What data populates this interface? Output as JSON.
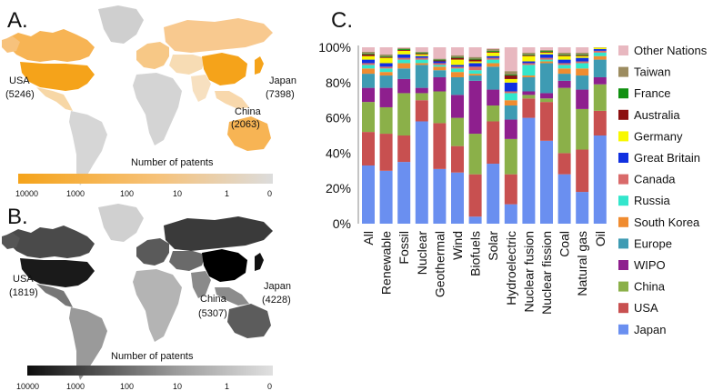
{
  "panels": {
    "a": {
      "letter": "A.",
      "colorbar_title": "Number of patents",
      "ticks": [
        "10000",
        "1000",
        "100",
        "10",
        "1",
        "0"
      ],
      "color_high": "#f5a31a",
      "color_low": "#d9d9d9",
      "countries": [
        {
          "name": "USA",
          "value": "(5246)"
        },
        {
          "name": "China",
          "value": "(2063)"
        },
        {
          "name": "Japan",
          "value": "(7398)"
        }
      ]
    },
    "b": {
      "letter": "B.",
      "colorbar_title": "Number of patents",
      "ticks": [
        "10000",
        "1000",
        "100",
        "10",
        "1",
        "0"
      ],
      "color_high": "#111111",
      "color_low": "#d9d9d9",
      "countries": [
        {
          "name": "USA",
          "value": "(1819)"
        },
        {
          "name": "China",
          "value": "(5307)"
        },
        {
          "name": "Japan",
          "value": "(4228)"
        }
      ]
    },
    "c": {
      "letter": "C."
    }
  },
  "chart_data": {
    "type": "bar",
    "stacked": true,
    "categories": [
      "All",
      "Renewable",
      "Fossil",
      "Nuclear",
      "Geothermal",
      "Wind",
      "Biofuels",
      "Solar",
      "Hydroelectric",
      "Nuclear fusion",
      "Nuclear fission",
      "Coal",
      "Natural gas",
      "Oil"
    ],
    "ylim": [
      0,
      100
    ],
    "yticks": [
      "0%",
      "20%",
      "40%",
      "60%",
      "80%",
      "100%"
    ],
    "ytick_values": [
      0,
      20,
      40,
      60,
      80,
      100
    ],
    "series": [
      {
        "name": "Japan",
        "color": "#6a8ff0",
        "values": [
          33,
          30,
          35,
          58,
          31,
          29,
          4,
          34,
          11,
          60,
          47,
          28,
          18,
          50
        ]
      },
      {
        "name": "USA",
        "color": "#c85050",
        "values": [
          19,
          21,
          15,
          12,
          26,
          15,
          24,
          24,
          17,
          11,
          22,
          12,
          24,
          14
        ]
      },
      {
        "name": "China",
        "color": "#8bb049",
        "values": [
          17,
          15,
          24,
          4,
          18,
          16,
          23,
          9,
          20,
          2,
          2,
          37,
          23,
          15
        ]
      },
      {
        "name": "WIPO",
        "color": "#8e1f8e",
        "values": [
          8,
          11,
          8,
          3,
          8,
          13,
          30,
          9,
          11,
          2,
          3,
          4,
          11,
          4
        ]
      },
      {
        "name": "Europe",
        "color": "#3e9bb3",
        "values": [
          8,
          7,
          6,
          13,
          4,
          10,
          3,
          13,
          8,
          8,
          17,
          4,
          8,
          10
        ]
      },
      {
        "name": "South Korea",
        "color": "#f08c30",
        "values": [
          3,
          2,
          3,
          1,
          2,
          3,
          1,
          2,
          3,
          1,
          1,
          3,
          4,
          2
        ]
      },
      {
        "name": "Russia",
        "color": "#33e6cc",
        "values": [
          2,
          2,
          2,
          2,
          1,
          2,
          2,
          2,
          4,
          6,
          1,
          2,
          3,
          2
        ]
      },
      {
        "name": "Canada",
        "color": "#d96a6a",
        "values": [
          1,
          1,
          1,
          1,
          1,
          1,
          2,
          1,
          1,
          1,
          1,
          1,
          1,
          1
        ]
      },
      {
        "name": "Great Britain",
        "color": "#1030e0",
        "values": [
          2,
          2,
          2,
          1,
          1,
          1,
          2,
          1,
          5,
          1,
          2,
          2,
          2,
          1
        ]
      },
      {
        "name": "Germany",
        "color": "#f8f800",
        "values": [
          2,
          3,
          2,
          1,
          0,
          3,
          1,
          2,
          2,
          3,
          1,
          2,
          1,
          1
        ]
      },
      {
        "name": "Australia",
        "color": "#8c1010",
        "values": [
          1,
          0.5,
          0.5,
          0.5,
          0.5,
          1,
          1,
          0.5,
          2,
          0.5,
          0.5,
          0.5,
          0.5,
          0.5
        ]
      },
      {
        "name": "France",
        "color": "#109010",
        "values": [
          0.5,
          0.5,
          0.5,
          0.5,
          0.5,
          0.5,
          0.5,
          0.5,
          0.5,
          0.5,
          0.5,
          0.5,
          0.5,
          0.5
        ]
      },
      {
        "name": "Taiwan",
        "color": "#9c8c60",
        "values": [
          1,
          1,
          0.5,
          0.5,
          0.5,
          1,
          1,
          1,
          2,
          1,
          0.5,
          1,
          1,
          1
        ]
      },
      {
        "name": "Other Nations",
        "color": "#e8b8c0",
        "values": [
          2.5,
          4,
          0.5,
          2.5,
          6.5,
          4.5,
          5.5,
          0.5,
          13.5,
          3.5,
          1.5,
          3.5,
          3,
          1
        ]
      }
    ]
  }
}
